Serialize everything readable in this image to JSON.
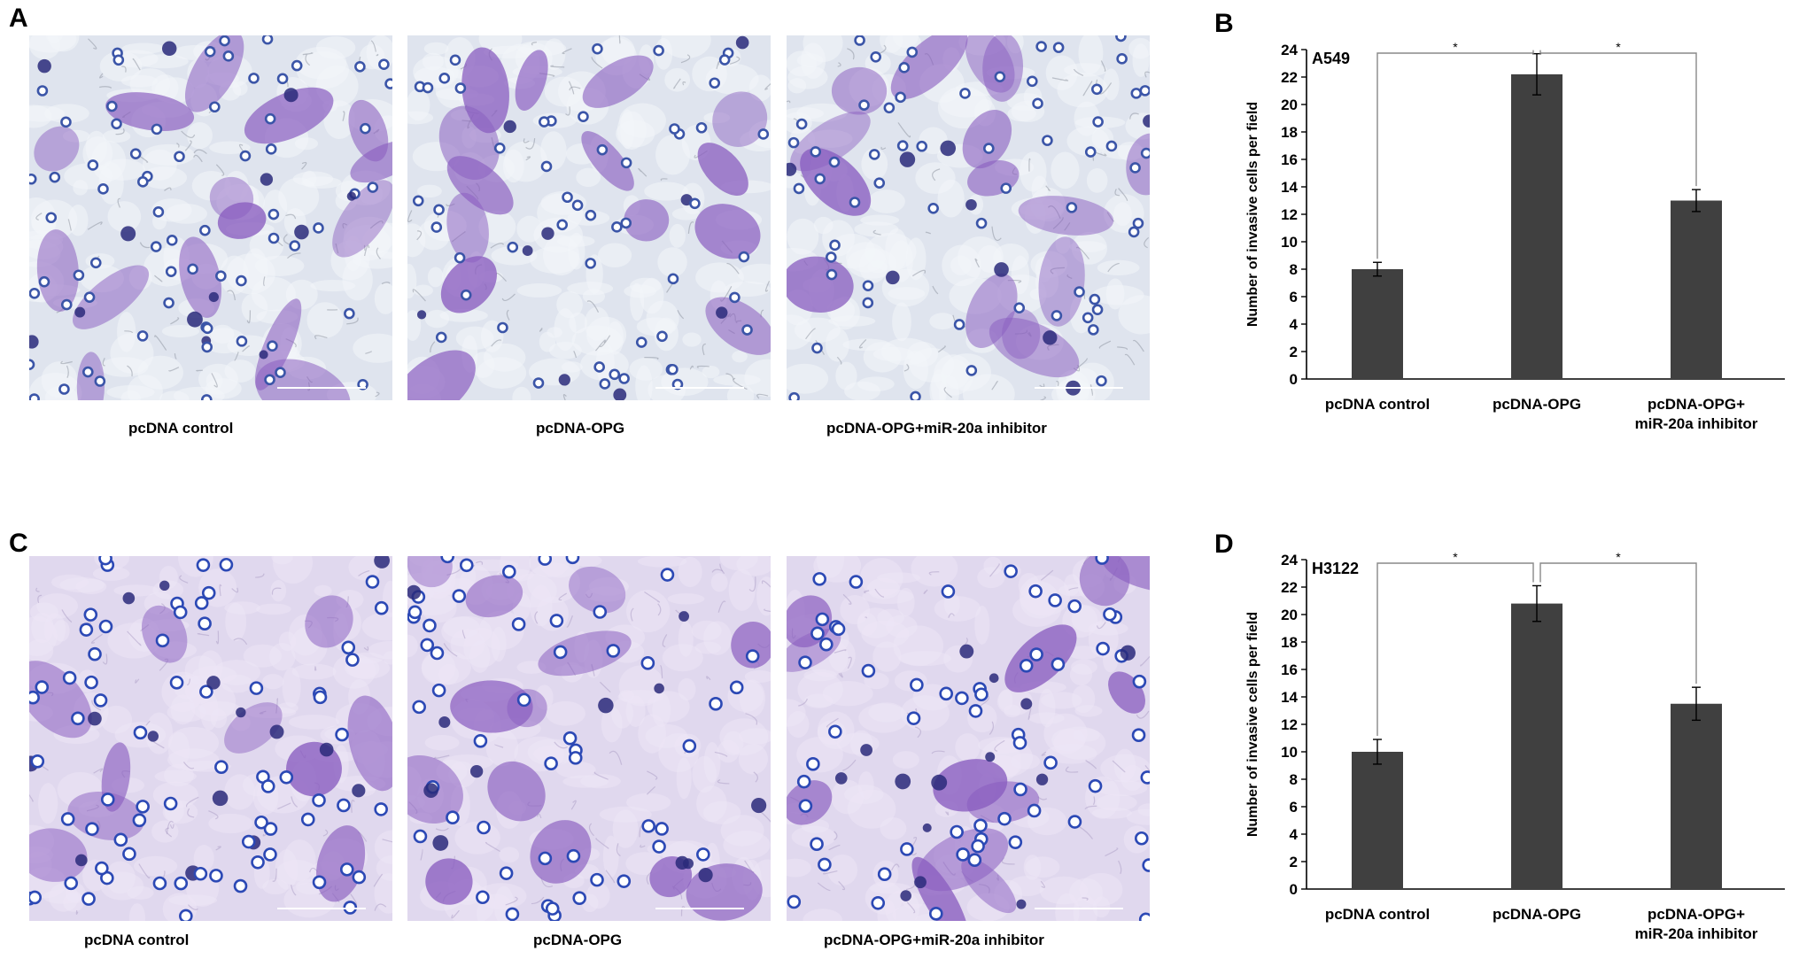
{
  "panels": {
    "A": {
      "letter": "A",
      "captions": [
        "pcDNA  control",
        "pcDNA-OPG",
        "pcDNA-OPG+miR-20a inhibitor"
      ]
    },
    "B": {
      "letter": "B"
    },
    "C": {
      "letter": "C",
      "captions": [
        "pcDNA  control",
        "pcDNA-OPG",
        "pcDNA-OPG+miR-20a inhibitor"
      ]
    },
    "D": {
      "letter": "D"
    }
  },
  "colors": {
    "bar": "#404040",
    "stain_a_bg": "#dfe4ee",
    "stain_c_bg": "#e0d8ee",
    "stain_purple": "#8a5ec0",
    "nucleus": "#2a2a7a"
  },
  "chart_data": [
    {
      "type": "bar",
      "panel": "B",
      "title": "A549",
      "categories": [
        "pcDNA  control",
        "pcDNA-OPG",
        "pcDNA-OPG+\nmiR-20a inhibitor"
      ],
      "values": [
        8,
        22.2,
        13
      ],
      "errors": [
        0.5,
        1.5,
        0.8
      ],
      "ylabel": "Number of invasive cells per field",
      "ylim": [
        0,
        24
      ],
      "yticks": [
        0,
        2,
        4,
        6,
        8,
        10,
        12,
        14,
        16,
        18,
        20,
        22,
        24
      ],
      "significance": [
        {
          "from": 0,
          "to": 1,
          "label": "*"
        },
        {
          "from": 1,
          "to": 2,
          "label": "*"
        }
      ]
    },
    {
      "type": "bar",
      "panel": "D",
      "title": "H3122",
      "categories": [
        "pcDNA  control",
        "pcDNA-OPG",
        "pcDNA-OPG+\nmiR-20a inhibitor"
      ],
      "values": [
        10,
        20.8,
        13.5
      ],
      "errors": [
        0.9,
        1.3,
        1.2
      ],
      "ylabel": "Number of invasive cells per field",
      "ylim": [
        0,
        24
      ],
      "yticks": [
        0,
        2,
        4,
        6,
        8,
        10,
        12,
        14,
        16,
        18,
        20,
        22,
        24
      ],
      "significance": [
        {
          "from": 0,
          "to": 1,
          "label": "*"
        },
        {
          "from": 1,
          "to": 2,
          "label": "*"
        }
      ]
    }
  ]
}
